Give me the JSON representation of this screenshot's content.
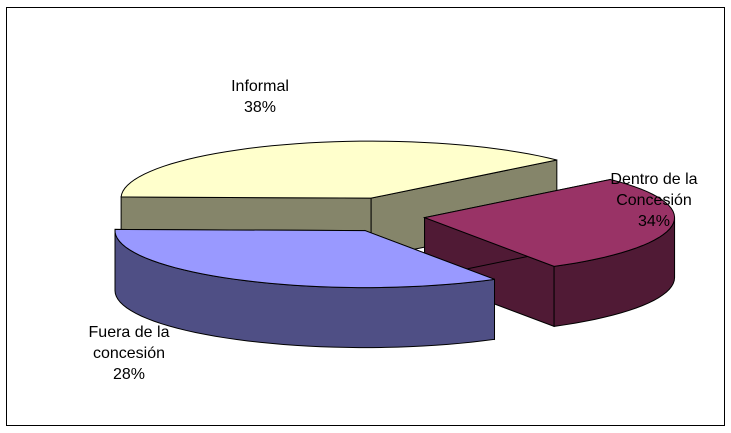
{
  "chart_data": {
    "type": "pie",
    "style": "3d-exploded",
    "slices": [
      {
        "label_lines": [
          "Informal"
        ],
        "percent_text": "38%",
        "value": 38,
        "top_color": "#FFFFCC",
        "side_color": "#85856A"
      },
      {
        "label_lines": [
          "Dentro de la",
          "Concesión"
        ],
        "percent_text": "34%",
        "value": 34,
        "top_color": "#9999FF",
        "side_color": "#4F4F85"
      },
      {
        "label_lines": [
          "Fuera de la",
          "concesión"
        ],
        "percent_text": "28%",
        "value": 28,
        "top_color": "#993366",
        "side_color": "#501A35"
      }
    ],
    "legend": "none",
    "grid": false
  }
}
